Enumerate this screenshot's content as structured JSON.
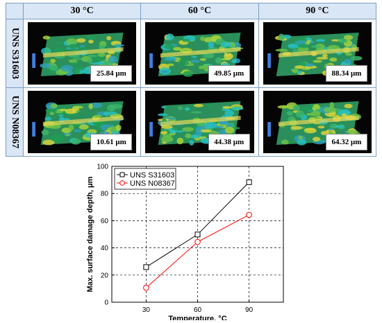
{
  "table": {
    "columns": [
      "30 °C",
      "60 °C",
      "90 °C"
    ],
    "rows": [
      {
        "label": "UNS S31603",
        "depths": [
          "25.84 μm",
          "49.85 μm",
          "88.34 μm"
        ]
      },
      {
        "label": "UNS N08367",
        "depths": [
          "10.61 μm",
          "44.38 μm",
          "64.32 μm"
        ]
      }
    ]
  },
  "chart_data": {
    "type": "line",
    "x": [
      30,
      60,
      90
    ],
    "xlim": [
      10,
      110
    ],
    "ylim": [
      0,
      100
    ],
    "xticks": [
      30,
      60,
      90
    ],
    "yticks": [
      0,
      20,
      40,
      60,
      80,
      100
    ],
    "xlabel": "Temperature, °C",
    "ylabel": "Max. surface damage depth, μm",
    "grid": true,
    "legend_position": "top-left",
    "series": [
      {
        "name": "UNS S31603",
        "values": [
          25.84,
          49.85,
          88.34
        ],
        "color": "#000000",
        "marker": "square"
      },
      {
        "name": "UNS N08367",
        "values": [
          10.61,
          44.38,
          64.32
        ],
        "color": "#ff0000",
        "marker": "circle"
      }
    ]
  },
  "colors": {
    "header_fill": "#d9e6f5",
    "border": "#7a9cc6"
  }
}
